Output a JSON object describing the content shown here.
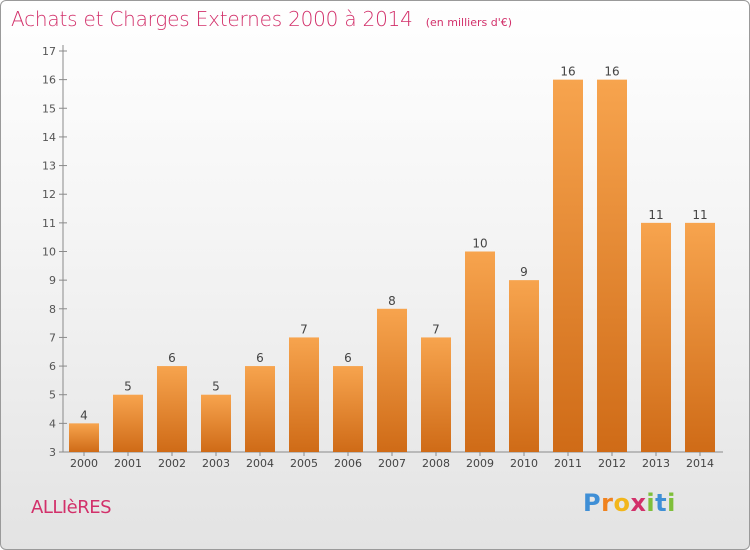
{
  "chart_data": {
    "type": "bar",
    "title": "Achats et Charges Externes 2000 à 2014",
    "unit": "(en milliers d'€)",
    "categories": [
      "2000",
      "2001",
      "2002",
      "2003",
      "2004",
      "2005",
      "2006",
      "2007",
      "2008",
      "2009",
      "2010",
      "2011",
      "2012",
      "2013",
      "2014"
    ],
    "values": [
      4,
      5,
      6,
      5,
      6,
      7,
      6,
      8,
      7,
      10,
      9,
      16,
      16,
      11,
      11
    ],
    "ylim": [
      3,
      17
    ],
    "yticks": [
      3,
      4,
      5,
      6,
      7,
      8,
      9,
      10,
      11,
      12,
      13,
      14,
      15,
      16,
      17
    ],
    "xlabel": "",
    "ylabel": "",
    "grid": false,
    "colors": {
      "bar_light": "#f7a44e",
      "bar_dark": "#cf6b17",
      "accent": "#d2306a"
    }
  },
  "footer": {
    "commune": "ALLIèRES",
    "logo": {
      "letters": [
        "P",
        "r",
        "o",
        "x",
        "i",
        "t",
        "i"
      ],
      "colors": [
        "#3f8fd6",
        "#f0821e",
        "#f2b61b",
        "#d2306a",
        "#7fbf3a",
        "#3f8fd6",
        "#7fbf3a"
      ]
    }
  }
}
